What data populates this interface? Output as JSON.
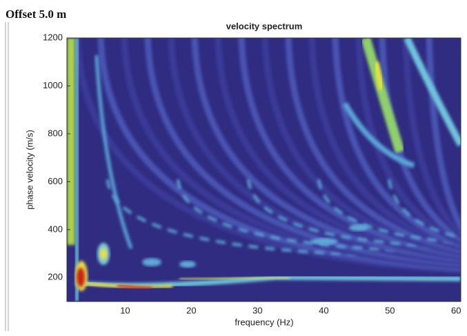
{
  "header": {
    "label": "Offset 5.0 m"
  },
  "chart_data": {
    "type": "contour",
    "title": "velocity spectrum",
    "x_label": "frequency (Hz)",
    "y_label": "phase velocity (m/s)",
    "xlim": [
      1.2,
      60.7
    ],
    "xticks": [
      10,
      20,
      30,
      40,
      50,
      60
    ],
    "ylim": [
      100,
      1200
    ],
    "yticks": [
      200,
      400,
      600,
      800,
      1000,
      1200
    ],
    "grid": false
  }
}
